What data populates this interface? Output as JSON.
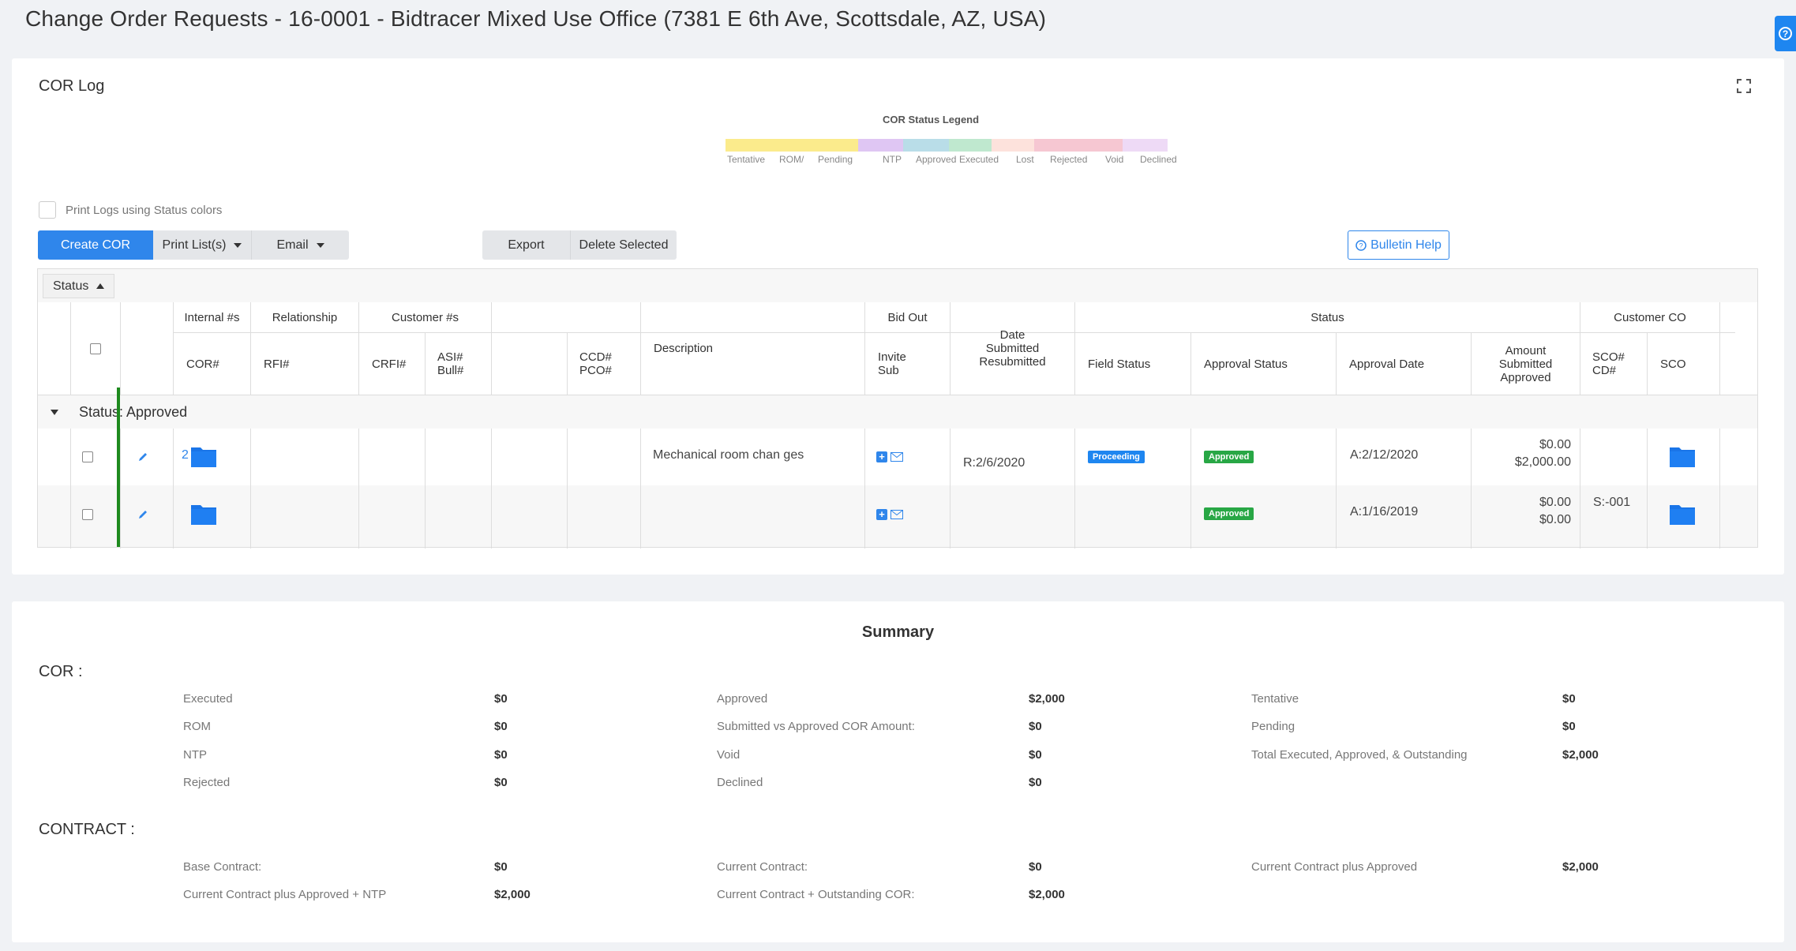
{
  "page_title": "Change Order Requests - 16-0001 - Bidtracer Mixed Use Office (7381 E 6th Ave, Scottsdale, AZ, USA)",
  "cor_log": {
    "title": "COR Log",
    "legend": {
      "title": "COR Status Legend",
      "segments": [
        {
          "label": "Tentative",
          "color": "#fbeb8c"
        },
        {
          "label": "ROM/",
          "color": "#fbeb8c"
        },
        {
          "label": "Pending",
          "color": "#fbeb8c"
        },
        {
          "label": "NTP",
          "color": "#dfc6f3"
        },
        {
          "label": "Approved",
          "color": "#b9dde8"
        },
        {
          "label": "Executed",
          "color": "#bfe8cf"
        },
        {
          "label": "Lost",
          "color": "#fde2dc"
        },
        {
          "label": "Rejected",
          "color": "#f6c7d2"
        },
        {
          "label": "Void",
          "color": "#f6c7d2"
        },
        {
          "label": "Declined",
          "color": "#eedaf6"
        }
      ]
    },
    "print_status_colors_label": "Print Logs using Status colors",
    "buttons": {
      "create": "Create COR",
      "print_lists": "Print List(s)",
      "email": "Email",
      "export": "Export",
      "delete_selected": "Delete Selected",
      "bulletin_help": "Bulletin Help"
    },
    "group_by_chip": "Status",
    "headers": {
      "internal_group": "Internal #s",
      "cor_num": "COR#",
      "relationship_group": "Relationship",
      "rfi": "RFI#",
      "asi": "ASI#",
      "bull": "Bull#",
      "customer_group": "Customer #s",
      "crfi": "CRFI#",
      "ccd": "CCD#",
      "pco": "PCO#",
      "description": "Description",
      "bidout_group": "Bid Out",
      "invite": "Invite",
      "sub": "Sub",
      "date1": "Date",
      "date2": "Submitted",
      "date3": "Resubmitted",
      "status_group": "Status",
      "field_status": "Field Status",
      "approval_status": "Approval Status",
      "approval_date": "Approval Date",
      "amount1": "Amount",
      "amount2": "Submitted",
      "amount3": "Approved",
      "custco_group": "Customer CO",
      "sco_num": "SCO#",
      "cd_num": "CD#",
      "sco": "SCO"
    },
    "group_label": "Status: Approved",
    "rows": [
      {
        "cor": "2",
        "description": "Mechanical room chan ges",
        "date": "R:2/6/2020",
        "field_status": "Proceeding",
        "approval_status": "Approved",
        "approval_date": "A:2/12/2020",
        "amount_submitted": "$0.00",
        "amount_approved": "$2,000.00",
        "sco_num": ""
      },
      {
        "cor": "",
        "description": "",
        "date": "",
        "field_status": "",
        "approval_status": "Approved",
        "approval_date": "A:1/16/2019",
        "amount_submitted": "$0.00",
        "amount_approved": "$0.00",
        "sco_num": "S:-001"
      }
    ]
  },
  "summary": {
    "title": "Summary",
    "cor_heading": "COR :",
    "contract_heading": "CONTRACT :",
    "cor_items": [
      {
        "label": "Executed",
        "value": "$0"
      },
      {
        "label": "ROM",
        "value": "$0"
      },
      {
        "label": "NTP",
        "value": "$0"
      },
      {
        "label": "Rejected",
        "value": "$0"
      },
      {
        "label": "Approved",
        "value": "$2,000"
      },
      {
        "label": "Submitted vs Approved COR Amount:",
        "value": "$0"
      },
      {
        "label": "Void",
        "value": "$0"
      },
      {
        "label": "Declined",
        "value": "$0"
      },
      {
        "label": "Tentative",
        "value": "$0"
      },
      {
        "label": "Pending",
        "value": "$0"
      },
      {
        "label": "Total Executed, Approved, & Outstanding",
        "value": "$2,000"
      }
    ],
    "contract_items": [
      {
        "label": "Base Contract:",
        "value": "$0"
      },
      {
        "label": "Current Contract plus Approved + NTP",
        "value": "$2,000"
      },
      {
        "label": "Current Contract:",
        "value": "$0"
      },
      {
        "label": "Current Contract + Outstanding COR:",
        "value": "$2,000"
      },
      {
        "label": "Current Contract plus Approved",
        "value": "$2,000"
      }
    ]
  }
}
